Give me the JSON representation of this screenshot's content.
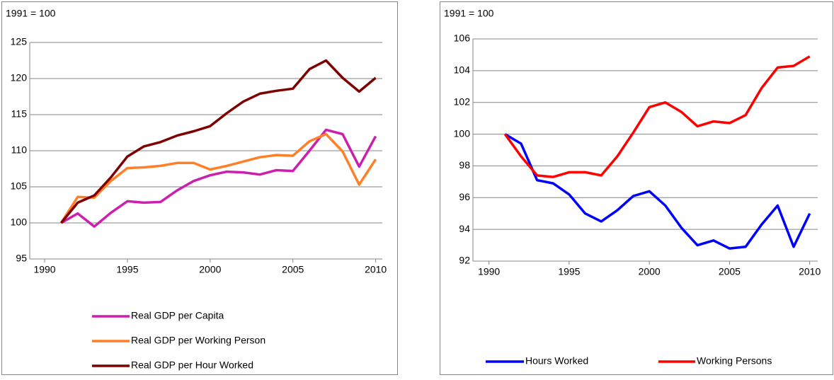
{
  "chart_data": [
    {
      "type": "line",
      "annotation": "1991 = 100",
      "x": [
        1991,
        1992,
        1993,
        1994,
        1995,
        1996,
        1997,
        1998,
        1999,
        2000,
        2001,
        2002,
        2003,
        2004,
        2005,
        2006,
        2007,
        2008,
        2009,
        2010
      ],
      "series": [
        {
          "name": "Real GDP per Capita",
          "color": "#cc1fae",
          "values": [
            100,
            101.3,
            99.5,
            101.4,
            103.0,
            102.8,
            102.9,
            104.5,
            105.8,
            106.6,
            107.1,
            107.0,
            106.7,
            107.3,
            107.2,
            110.0,
            112.9,
            112.3,
            107.8,
            112.0
          ]
        },
        {
          "name": "Real GDP per Working Person",
          "color": "#ff7f27",
          "values": [
            100,
            103.6,
            103.5,
            105.8,
            107.6,
            107.7,
            107.9,
            108.3,
            108.3,
            107.4,
            107.9,
            108.5,
            109.1,
            109.4,
            109.3,
            111.3,
            112.3,
            109.9,
            105.3,
            108.8
          ]
        },
        {
          "name": "Real GDP per Hour Worked",
          "color": "#7f0000",
          "values": [
            100,
            102.8,
            103.8,
            106.3,
            109.2,
            110.6,
            111.2,
            112.1,
            112.7,
            113.4,
            115.2,
            116.8,
            117.9,
            118.3,
            118.6,
            121.3,
            122.5,
            120.1,
            118.2,
            120.1
          ]
        }
      ],
      "xlim": [
        1989.1,
        2010.4
      ],
      "xticks": [
        1990,
        1995,
        2000,
        2005,
        2010
      ],
      "ylim": [
        95,
        125
      ],
      "yticks": [
        95,
        100,
        105,
        110,
        115,
        120,
        125
      ],
      "grid": true,
      "legend": "bottom"
    },
    {
      "type": "line",
      "annotation": "1991 = 100",
      "x": [
        1991,
        1992,
        1993,
        1994,
        1995,
        1996,
        1997,
        1998,
        1999,
        2000,
        2001,
        2002,
        2003,
        2004,
        2005,
        2006,
        2007,
        2008,
        2009,
        2010
      ],
      "series": [
        {
          "name": "Hours Worked",
          "color": "#0000ff",
          "values": [
            100,
            99.4,
            97.1,
            96.9,
            96.2,
            95.0,
            94.5,
            95.2,
            96.1,
            96.4,
            95.5,
            94.1,
            93.0,
            93.3,
            92.8,
            92.9,
            94.3,
            95.5,
            92.9,
            95.0
          ]
        },
        {
          "name": "Working Persons",
          "color": "#ff0000",
          "values": [
            100,
            98.6,
            97.4,
            97.3,
            97.6,
            97.6,
            97.4,
            98.6,
            100.1,
            101.7,
            102.0,
            101.4,
            100.5,
            100.8,
            100.7,
            101.2,
            102.9,
            104.2,
            104.3,
            104.9
          ]
        }
      ],
      "xlim": [
        1989.0,
        2010.5
      ],
      "xticks": [
        1990,
        1995,
        2000,
        2005,
        2010
      ],
      "ylim": [
        92,
        106
      ],
      "yticks": [
        92,
        94,
        96,
        98,
        100,
        102,
        104,
        106
      ],
      "grid": true,
      "legend": "bottom"
    }
  ]
}
